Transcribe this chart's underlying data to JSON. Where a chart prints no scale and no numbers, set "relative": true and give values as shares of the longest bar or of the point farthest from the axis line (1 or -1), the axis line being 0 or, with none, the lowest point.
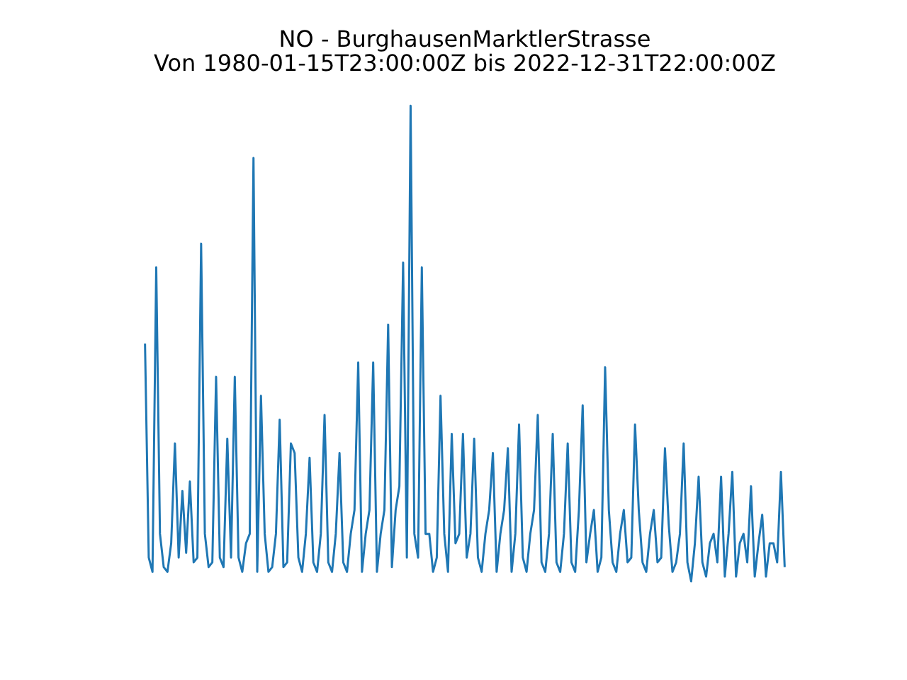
{
  "chart_data": {
    "type": "line",
    "title": "NO - BurghausenMarktlerStrasse",
    "subtitle": "Von 1980-01-15T23:00:00Z bis 2022-12-31T22:00:00Z",
    "relative": true,
    "categories": [
      null,
      null,
      null,
      null,
      null,
      null,
      null,
      null,
      null,
      null,
      null,
      null,
      null,
      null,
      null,
      null,
      null,
      null,
      null,
      null,
      null,
      null,
      null,
      null,
      null,
      null,
      null,
      null,
      null,
      null,
      null,
      null,
      null,
      null,
      null,
      null,
      null,
      null,
      null,
      null,
      null,
      null,
      null,
      null,
      null,
      null,
      null,
      null,
      null,
      null,
      null,
      null,
      null,
      null,
      null,
      null,
      null,
      null,
      null,
      null,
      null,
      null,
      null,
      null,
      null,
      null,
      null,
      null,
      null,
      null,
      null,
      null,
      null,
      null,
      null,
      null,
      null,
      null,
      null,
      null,
      null,
      null,
      null,
      null,
      null,
      null,
      null,
      null,
      null,
      null,
      null,
      null,
      null,
      null,
      null,
      null,
      null,
      null,
      null,
      null,
      null,
      null,
      null,
      null,
      null,
      null,
      null,
      null,
      null,
      null,
      null,
      null,
      null,
      null,
      null,
      null,
      null,
      null,
      null,
      null,
      null,
      null,
      null,
      null,
      null,
      null,
      null,
      null,
      null,
      null,
      null,
      null,
      null,
      null,
      null,
      null,
      null,
      null,
      null,
      null,
      null,
      null,
      null,
      null,
      null,
      null,
      null,
      null,
      null,
      null,
      null,
      null,
      null,
      null,
      null,
      null,
      null,
      null,
      null,
      null,
      null,
      null,
      null,
      null,
      null,
      null,
      null,
      null,
      null,
      null,
      null,
      null
    ],
    "series": [
      {
        "color": "#1f77b4",
        "values": [
          0.5,
          0.05,
          0.02,
          0.66,
          0.1,
          0.03,
          0.02,
          0.08,
          0.29,
          0.05,
          0.19,
          0.06,
          0.21,
          0.04,
          0.05,
          0.71,
          0.1,
          0.03,
          0.04,
          0.43,
          0.05,
          0.03,
          0.3,
          0.05,
          0.43,
          0.05,
          0.02,
          0.08,
          0.1,
          0.89,
          0.02,
          0.39,
          0.1,
          0.02,
          0.03,
          0.1,
          0.34,
          0.03,
          0.04,
          0.29,
          0.27,
          0.05,
          0.02,
          0.1,
          0.26,
          0.04,
          0.02,
          0.1,
          0.35,
          0.04,
          0.02,
          0.1,
          0.27,
          0.04,
          0.02,
          0.1,
          0.15,
          0.46,
          0.02,
          0.1,
          0.15,
          0.46,
          0.02,
          0.1,
          0.15,
          0.54,
          0.03,
          0.15,
          0.2,
          0.67,
          0.05,
          1,
          0.1,
          0.05,
          0.66,
          0.1,
          0.1,
          0.02,
          0.05,
          0.39,
          0.1,
          0.02,
          0.31,
          0.08,
          0.1,
          0.31,
          0.05,
          0.1,
          0.3,
          0.05,
          0.02,
          0.1,
          0.15,
          0.27,
          0.02,
          0.1,
          0.15,
          0.28,
          0.02,
          0.1,
          0.33,
          0.05,
          0.02,
          0.1,
          0.15,
          0.35,
          0.04,
          0.02,
          0.1,
          0.31,
          0.04,
          0.02,
          0.1,
          0.29,
          0.04,
          0.02,
          0.15,
          0.37,
          0.04,
          0.1,
          0.15,
          0.02,
          0.05,
          0.45,
          0.15,
          0.04,
          0.02,
          0.1,
          0.15,
          0.04,
          0.05,
          0.33,
          0.15,
          0.04,
          0.02,
          0.1,
          0.15,
          0.04,
          0.05,
          0.28,
          0.12,
          0.02,
          0.04,
          0.1,
          0.29,
          0.04,
          0,
          0.08,
          0.22,
          0.04,
          0.01,
          0.08,
          0.1,
          0.04,
          0.22,
          0.01,
          0.1,
          0.23,
          0.01,
          0.08,
          0.1,
          0.04,
          0.2,
          0.01,
          0.08,
          0.14,
          0.01,
          0.08,
          0.08,
          0.04,
          0.23,
          0.03
        ]
      }
    ]
  }
}
